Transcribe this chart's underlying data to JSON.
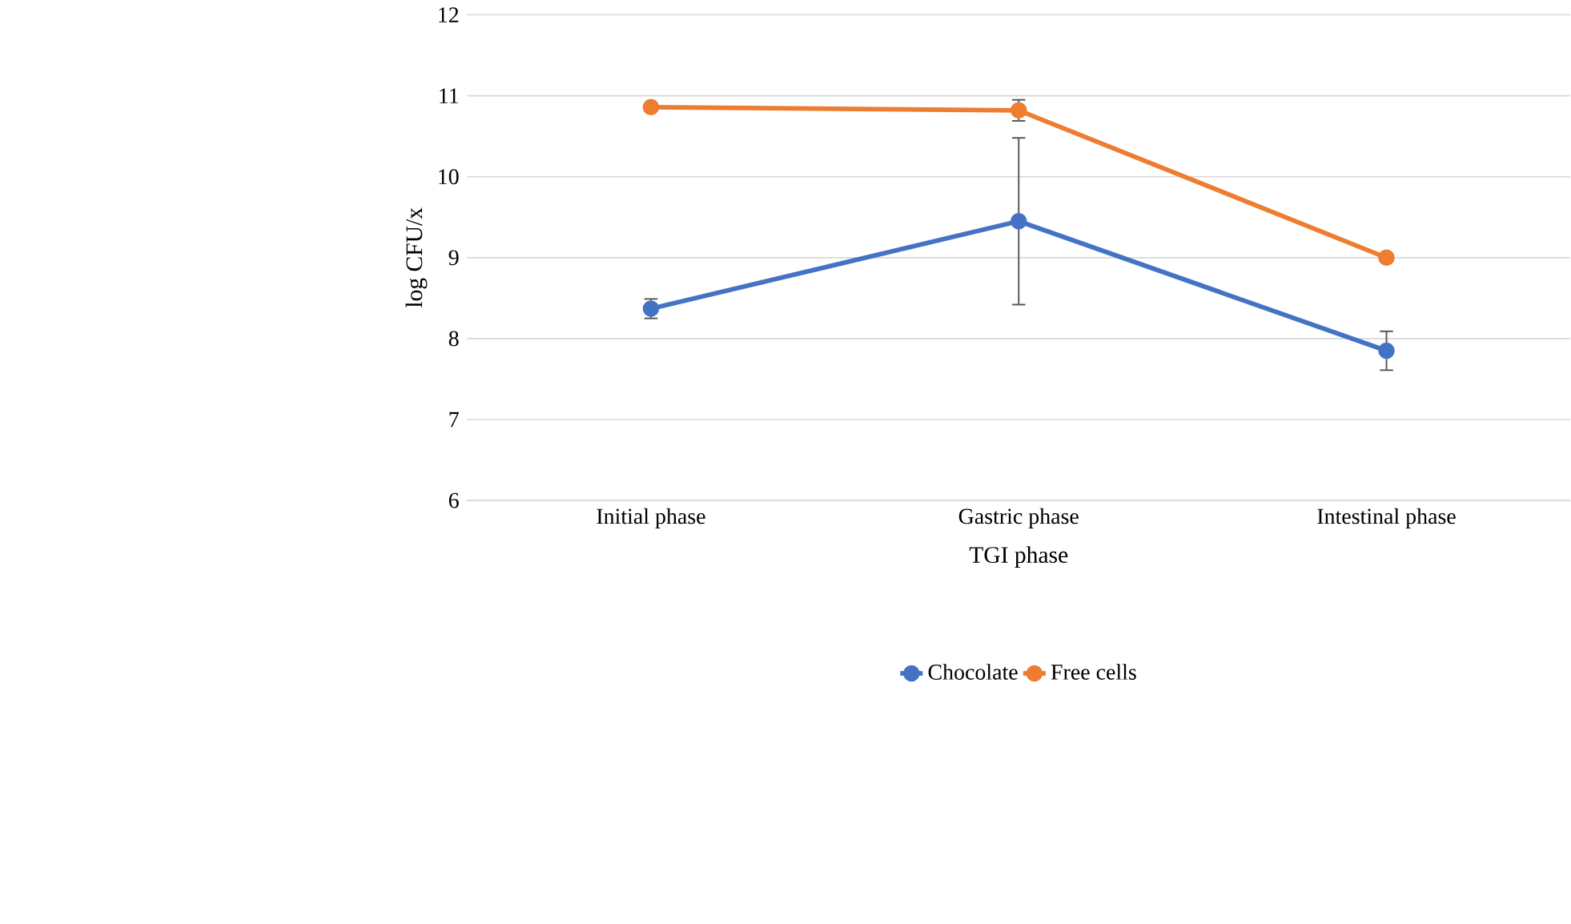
{
  "chart_data": {
    "type": "line",
    "xlabel": "TGI phase",
    "ylabel": "log CFU/x",
    "categories": [
      "Initial phase",
      "Gastric phase",
      "Intestinal phase"
    ],
    "series": [
      {
        "name": "Chocolate",
        "color": "#4472c4",
        "values": [
          8.37,
          9.45,
          7.85
        ],
        "errors": [
          0.12,
          1.03,
          0.24
        ]
      },
      {
        "name": "Free cells",
        "color": "#ed7d31",
        "values": [
          10.86,
          10.82,
          9.0
        ],
        "errors": [
          null,
          0.13,
          null
        ]
      }
    ],
    "ylim": [
      6,
      12
    ],
    "yticks": [
      6,
      7,
      8,
      9,
      10,
      11,
      12
    ],
    "grid": "y",
    "legend": "bottom",
    "marker": "circle",
    "line_style": "solid"
  }
}
